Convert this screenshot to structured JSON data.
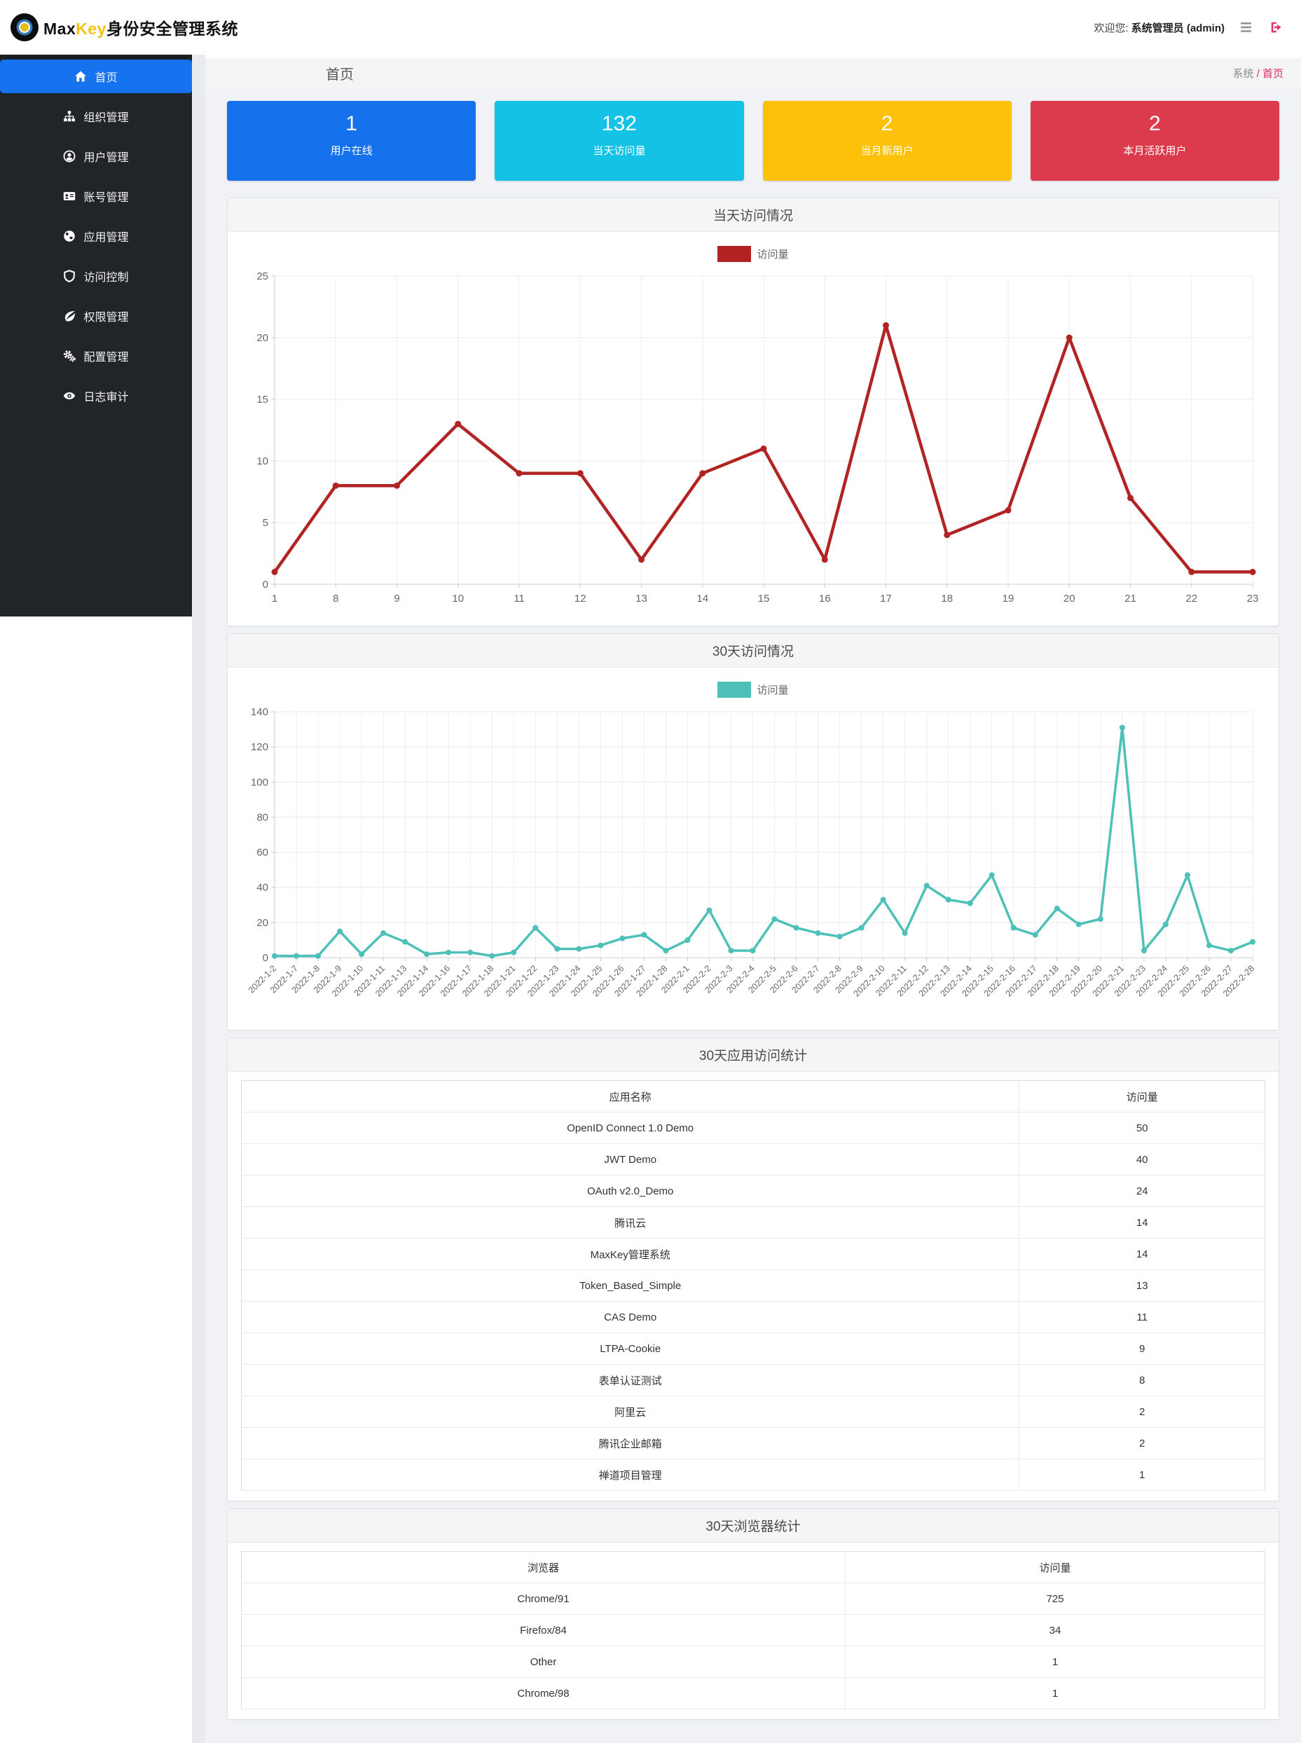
{
  "topbar": {
    "brand_max": "Max",
    "brand_key": "Key",
    "brand_suffix": "身份安全管理系统",
    "welcome_prefix": "欢迎您:",
    "welcome_user": "系统管理员 (admin)",
    "icons": [
      "menu-icon",
      "logout-icon"
    ]
  },
  "sidebar": {
    "items": [
      {
        "key": "home",
        "label": "首页",
        "icon": "home-icon",
        "active": true
      },
      {
        "key": "org",
        "label": "组织管理",
        "icon": "sitemap-icon",
        "active": false
      },
      {
        "key": "user",
        "label": "用户管理",
        "icon": "user-icon",
        "active": false
      },
      {
        "key": "account",
        "label": "账号管理",
        "icon": "idcard-icon",
        "active": false
      },
      {
        "key": "app",
        "label": "应用管理",
        "icon": "globe-icon",
        "active": false
      },
      {
        "key": "access",
        "label": "访问控制",
        "icon": "shield-icon",
        "active": false
      },
      {
        "key": "perm",
        "label": "权限管理",
        "icon": "leaf-icon",
        "active": false
      },
      {
        "key": "config",
        "label": "配置管理",
        "icon": "gears-icon",
        "active": false
      },
      {
        "key": "audit",
        "label": "日志审计",
        "icon": "eye-icon",
        "active": false
      }
    ]
  },
  "page_header": {
    "title": "首页",
    "breadcrumb_root": "系统",
    "breadcrumb_sep": " / ",
    "breadcrumb_current": "首页"
  },
  "stat_cards": [
    {
      "value": "1",
      "label": "用户在线",
      "color": "#1672ec"
    },
    {
      "value": "132",
      "label": "当天访问量",
      "color": "#13c2e5"
    },
    {
      "value": "2",
      "label": "当月新用户",
      "color": "#fcc108"
    },
    {
      "value": "2",
      "label": "本月活跃用户",
      "color": "#dc3b4d"
    }
  ],
  "chart_data": [
    {
      "type": "line",
      "title": "当天访问情况",
      "legend": "访问量",
      "legend_position": "top-center",
      "color": "#b22423",
      "grid": true,
      "rotate_labels": false,
      "categories": [
        "1",
        "8",
        "9",
        "10",
        "11",
        "12",
        "13",
        "14",
        "15",
        "16",
        "17",
        "18",
        "19",
        "20",
        "21",
        "22",
        "23"
      ],
      "values": [
        1,
        8,
        8,
        13,
        9,
        9,
        2,
        9,
        11,
        2,
        21,
        4,
        6,
        20,
        7,
        1,
        1
      ],
      "xlabel": "",
      "ylabel": "",
      "ylim": [
        0,
        25
      ],
      "ytick_step": 5
    },
    {
      "type": "line",
      "title": "30天访问情况",
      "legend": "访问量",
      "legend_position": "top-center",
      "color": "#4dc0b7",
      "grid": true,
      "rotate_labels": true,
      "categories": [
        "2022-1-2",
        "2022-1-7",
        "2022-1-8",
        "2022-1-9",
        "2022-1-10",
        "2022-1-11",
        "2022-1-13",
        "2022-1-14",
        "2022-1-16",
        "2022-1-17",
        "2022-1-18",
        "2022-1-21",
        "2022-1-22",
        "2022-1-23",
        "2022-1-24",
        "2022-1-25",
        "2022-1-26",
        "2022-1-27",
        "2022-1-28",
        "2022-2-1",
        "2022-2-2",
        "2022-2-3",
        "2022-2-4",
        "2022-2-5",
        "2022-2-6",
        "2022-2-7",
        "2022-2-8",
        "2022-2-9",
        "2022-2-10",
        "2022-2-11",
        "2022-2-12",
        "2022-2-13",
        "2022-2-14",
        "2022-2-15",
        "2022-2-16",
        "2022-2-17",
        "2022-2-18",
        "2022-2-19",
        "2022-2-20",
        "2022-2-21",
        "2022-2-23",
        "2022-2-24",
        "2022-2-25",
        "2022-2-26",
        "2022-2-27",
        "2022-2-28"
      ],
      "values": [
        1,
        1,
        1,
        15,
        2,
        14,
        9,
        2,
        3,
        3,
        1,
        3,
        17,
        5,
        5,
        7,
        11,
        13,
        4,
        10,
        27,
        4,
        4,
        22,
        17,
        14,
        12,
        17,
        33,
        14,
        41,
        33,
        31,
        47,
        17,
        13,
        28,
        19,
        22,
        131,
        4,
        19,
        47,
        7,
        4,
        9
      ],
      "xlabel": "",
      "ylabel": "",
      "ylim": [
        0,
        140
      ],
      "ytick_step": 20
    }
  ],
  "tables": [
    {
      "title": "30天应用访问统计",
      "headers": [
        "应用名称",
        "访问量"
      ],
      "col_widths": [
        "76%",
        "24%"
      ],
      "rows": [
        [
          "OpenID Connect 1.0 Demo",
          "50"
        ],
        [
          "JWT Demo",
          "40"
        ],
        [
          "OAuth v2.0_Demo",
          "24"
        ],
        [
          "腾讯云",
          "14"
        ],
        [
          "MaxKey管理系统",
          "14"
        ],
        [
          "Token_Based_Simple",
          "13"
        ],
        [
          "CAS Demo",
          "11"
        ],
        [
          "LTPA-Cookie",
          "9"
        ],
        [
          "表单认证测试",
          "8"
        ],
        [
          "阿里云",
          "2"
        ],
        [
          "腾讯企业邮箱",
          "2"
        ],
        [
          "禅道项目管理",
          "1"
        ]
      ]
    },
    {
      "title": "30天浏览器统计",
      "headers": [
        "浏览器",
        "访问量"
      ],
      "col_widths": [
        "59%",
        "41%"
      ],
      "rows": [
        [
          "Chrome/91",
          "725"
        ],
        [
          "Firefox/84",
          "34"
        ],
        [
          "Other",
          "1"
        ],
        [
          "Chrome/98",
          "1"
        ]
      ]
    }
  ]
}
